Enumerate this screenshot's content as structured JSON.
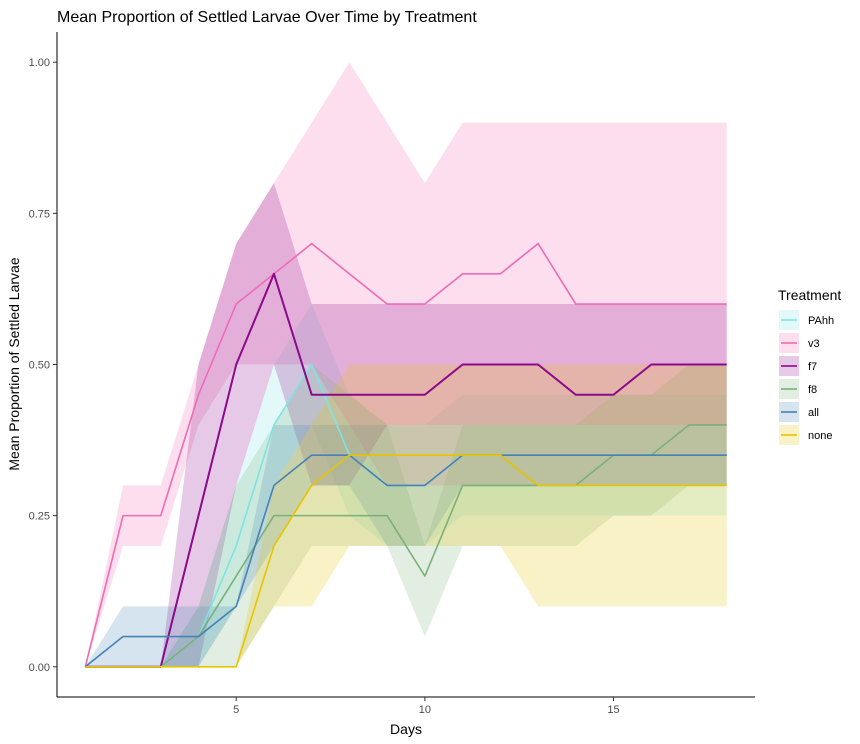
{
  "chart_data": {
    "type": "line",
    "title": "Mean Proportion of Settled Larvae Over Time by Treatment",
    "xlabel": "Days",
    "ylabel": "Mean Proportion of Settled Larvae",
    "xlim": [
      0.25,
      18.75
    ],
    "ylim": [
      -0.05,
      1.05
    ],
    "x_ticks": [
      5,
      10,
      15
    ],
    "y_ticks": [
      0.0,
      0.25,
      0.5,
      0.75,
      1.0
    ],
    "x_tick_labels": [
      "5",
      "10",
      "15"
    ],
    "y_tick_labels": [
      "0.00",
      "0.25",
      "0.50",
      "0.75",
      "1.00"
    ],
    "grid": false,
    "legend": {
      "title": "Treatment",
      "position": "right"
    },
    "ribbons": "shaded band around each line",
    "series": [
      {
        "name": "PAhh",
        "color": "#7fe3e3",
        "x": [
          1,
          2,
          3,
          4,
          5,
          6,
          7,
          8,
          9,
          10,
          11,
          12,
          13,
          14,
          15,
          16,
          17,
          18
        ],
        "y": [
          0,
          0,
          0,
          0.05,
          0.2,
          0.4,
          0.5,
          0.35,
          0.3,
          0.3,
          0.35,
          0.35,
          0.35,
          0.35,
          0.35,
          0.35,
          0.35,
          0.35
        ],
        "lower": [
          0,
          0,
          0,
          0,
          0.1,
          0.3,
          0.4,
          0.25,
          0.2,
          0.2,
          0.25,
          0.25,
          0.25,
          0.25,
          0.25,
          0.25,
          0.25,
          0.25
        ],
        "upper": [
          0,
          0,
          0,
          0.1,
          0.3,
          0.5,
          0.6,
          0.45,
          0.4,
          0.4,
          0.45,
          0.45,
          0.45,
          0.45,
          0.45,
          0.45,
          0.45,
          0.45
        ]
      },
      {
        "name": "v3",
        "color": "#f06ab4",
        "x": [
          1,
          2,
          3,
          4,
          5,
          6,
          7,
          8,
          9,
          10,
          11,
          12,
          13,
          14,
          15,
          16,
          17,
          18
        ],
        "y": [
          0,
          0.25,
          0.25,
          0.45,
          0.6,
          0.65,
          0.7,
          0.65,
          0.6,
          0.6,
          0.65,
          0.65,
          0.7,
          0.6,
          0.6,
          0.6,
          0.6,
          0.6
        ],
        "lower": [
          0,
          0.2,
          0.2,
          0.4,
          0.5,
          0.5,
          0.5,
          0.4,
          0.3,
          0.3,
          0.3,
          0.3,
          0.3,
          0.3,
          0.3,
          0.3,
          0.3,
          0.3
        ],
        "upper": [
          0,
          0.3,
          0.3,
          0.5,
          0.7,
          0.8,
          0.9,
          1.0,
          0.9,
          0.8,
          0.9,
          0.9,
          0.9,
          0.9,
          0.9,
          0.9,
          0.9,
          0.9
        ]
      },
      {
        "name": "f7",
        "color": "#8b0a8b",
        "x": [
          1,
          2,
          3,
          4,
          5,
          6,
          7,
          8,
          9,
          10,
          11,
          12,
          13,
          14,
          15,
          16,
          17,
          18
        ],
        "y": [
          0,
          0,
          0,
          0.25,
          0.5,
          0.65,
          0.45,
          0.45,
          0.45,
          0.45,
          0.5,
          0.5,
          0.5,
          0.45,
          0.45,
          0.5,
          0.5,
          0.5
        ],
        "lower": [
          0,
          0,
          0,
          0,
          0.3,
          0.5,
          0.3,
          0.3,
          0.4,
          0.4,
          0.4,
          0.4,
          0.4,
          0.4,
          0.4,
          0.4,
          0.4,
          0.4
        ],
        "upper": [
          0,
          0,
          0,
          0.5,
          0.7,
          0.8,
          0.6,
          0.6,
          0.6,
          0.6,
          0.6,
          0.6,
          0.6,
          0.6,
          0.6,
          0.6,
          0.6,
          0.6
        ]
      },
      {
        "name": "f8",
        "color": "#7ab07a",
        "x": [
          1,
          2,
          3,
          4,
          5,
          6,
          7,
          8,
          9,
          10,
          11,
          12,
          13,
          14,
          15,
          16,
          17,
          18
        ],
        "y": [
          0,
          0,
          0,
          0.05,
          0.15,
          0.25,
          0.25,
          0.25,
          0.25,
          0.15,
          0.3,
          0.3,
          0.3,
          0.3,
          0.35,
          0.35,
          0.4,
          0.4
        ],
        "lower": [
          0,
          0,
          0,
          0,
          0,
          0.1,
          0.2,
          0.2,
          0.2,
          0.05,
          0.2,
          0.2,
          0.2,
          0.2,
          0.25,
          0.25,
          0.3,
          0.3
        ],
        "upper": [
          0,
          0,
          0,
          0.1,
          0.3,
          0.4,
          0.5,
          0.45,
          0.4,
          0.2,
          0.4,
          0.4,
          0.4,
          0.4,
          0.45,
          0.45,
          0.5,
          0.5
        ]
      },
      {
        "name": "all",
        "color": "#4682b4",
        "x": [
          1,
          2,
          3,
          4,
          5,
          6,
          7,
          8,
          9,
          10,
          11,
          12,
          13,
          14,
          15,
          16,
          17,
          18
        ],
        "y": [
          0,
          0.05,
          0.05,
          0.05,
          0.1,
          0.3,
          0.35,
          0.35,
          0.3,
          0.3,
          0.35,
          0.35,
          0.35,
          0.35,
          0.35,
          0.35,
          0.35,
          0.35
        ],
        "lower": [
          0,
          0,
          0,
          0,
          0.1,
          0.2,
          0.3,
          0.3,
          0.2,
          0.2,
          0.3,
          0.3,
          0.3,
          0.3,
          0.3,
          0.3,
          0.3,
          0.3
        ],
        "upper": [
          0,
          0.1,
          0.1,
          0.1,
          0.1,
          0.4,
          0.4,
          0.4,
          0.4,
          0.4,
          0.4,
          0.4,
          0.4,
          0.4,
          0.4,
          0.4,
          0.4,
          0.4
        ]
      },
      {
        "name": "none",
        "color": "#e6c400",
        "x": [
          1,
          2,
          3,
          4,
          5,
          6,
          7,
          8,
          9,
          10,
          11,
          12,
          13,
          14,
          15,
          16,
          17,
          18
        ],
        "y": [
          0,
          0,
          0,
          0,
          0,
          0.2,
          0.3,
          0.35,
          0.35,
          0.35,
          0.35,
          0.35,
          0.3,
          0.3,
          0.3,
          0.3,
          0.3,
          0.3
        ],
        "lower": [
          0,
          0,
          0,
          0,
          0,
          0.1,
          0.1,
          0.2,
          0.2,
          0.2,
          0.2,
          0.2,
          0.1,
          0.1,
          0.1,
          0.1,
          0.1,
          0.1
        ],
        "upper": [
          0,
          0,
          0,
          0,
          0,
          0.3,
          0.4,
          0.5,
          0.5,
          0.5,
          0.5,
          0.5,
          0.5,
          0.5,
          0.5,
          0.5,
          0.5,
          0.5
        ]
      }
    ]
  }
}
